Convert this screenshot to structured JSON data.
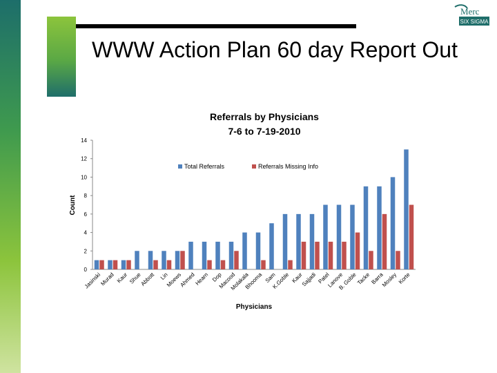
{
  "slide": {
    "title": "WWW Action Plan 60 day Report Out",
    "logo_text_top": "Merc",
    "logo_text_bottom": "SIX SIGMA"
  },
  "colors": {
    "series_total": "#4f81bd",
    "series_missing": "#c0504d",
    "accent_green": "#5aa845",
    "accent_teal": "#1f6e6a"
  },
  "chart_data": {
    "type": "bar",
    "title": "Referrals by Physicians",
    "subtitle": "7-6 to 7-19-2010",
    "xlabel": "Physicians",
    "ylabel": "Count",
    "ylim": [
      0,
      14
    ],
    "yticks": [
      0,
      2,
      4,
      6,
      8,
      10,
      12,
      14
    ],
    "grid": false,
    "legend_position": "top-center",
    "categories": [
      "Jasinski",
      "Murad",
      "Kaur",
      "Shue",
      "Abbott",
      "Lin",
      "Moews",
      "Ahmed",
      "Hearn",
      "Dop",
      "Macood",
      "Molakala",
      "Bhooma",
      "Sam",
      "K.Goble",
      "Kaur",
      "Sajjadi",
      "Patel",
      "Lanove",
      "B. Goble",
      "Tacke",
      "Barra",
      "Mosley",
      "Korte"
    ],
    "series": [
      {
        "name": "Total Referrals",
        "values": [
          1,
          1,
          1,
          2,
          2,
          2,
          2,
          3,
          3,
          3,
          3,
          4,
          4,
          5,
          6,
          6,
          6,
          7,
          7,
          7,
          9,
          9,
          10,
          13
        ]
      },
      {
        "name": "Referrals Missing Info",
        "values": [
          1,
          1,
          1,
          0,
          1,
          1,
          2,
          0,
          1,
          1,
          2,
          0,
          1,
          0,
          1,
          3,
          3,
          3,
          3,
          4,
          2,
          6,
          2,
          7
        ]
      }
    ]
  }
}
